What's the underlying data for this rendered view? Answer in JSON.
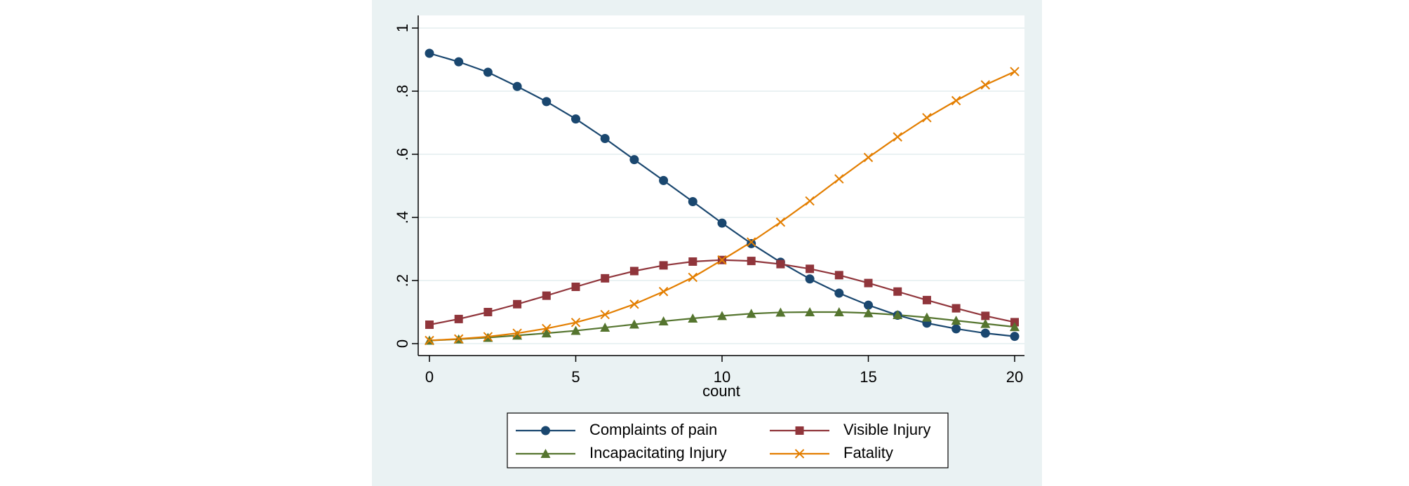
{
  "chart_data": {
    "type": "line",
    "title": "",
    "xlabel": "count",
    "ylabel": "",
    "xlim": [
      0,
      20
    ],
    "ylim": [
      0,
      1
    ],
    "x_ticks": [
      0,
      5,
      10,
      15,
      20
    ],
    "x_tick_labels": [
      "0",
      "5",
      "10",
      "15",
      "20"
    ],
    "y_ticks": [
      0,
      0.2,
      0.4,
      0.6,
      0.8,
      1
    ],
    "y_tick_labels": [
      "0",
      ".2",
      ".4",
      ".6",
      ".8",
      "1"
    ],
    "grid": true,
    "legend_position": "bottom",
    "x": [
      0,
      1,
      2,
      3,
      4,
      5,
      6,
      7,
      8,
      9,
      10,
      11,
      12,
      13,
      14,
      15,
      16,
      17,
      18,
      19,
      20
    ],
    "series": [
      {
        "name": "Complaints of pain",
        "color": "#1a476f",
        "marker": "circle",
        "values": [
          0.92,
          0.893,
          0.86,
          0.815,
          0.767,
          0.712,
          0.65,
          0.583,
          0.517,
          0.45,
          0.382,
          0.317,
          0.258,
          0.205,
          0.16,
          0.122,
          0.09,
          0.065,
          0.047,
          0.033,
          0.023
        ]
      },
      {
        "name": "Visible Injury",
        "color": "#90353b",
        "marker": "square",
        "values": [
          0.06,
          0.078,
          0.1,
          0.125,
          0.152,
          0.18,
          0.207,
          0.23,
          0.248,
          0.26,
          0.265,
          0.262,
          0.252,
          0.237,
          0.217,
          0.192,
          0.165,
          0.138,
          0.112,
          0.088,
          0.068
        ]
      },
      {
        "name": "Incapacitating Injury",
        "color": "#55752f",
        "marker": "triangle",
        "values": [
          0.01,
          0.014,
          0.019,
          0.026,
          0.033,
          0.041,
          0.051,
          0.061,
          0.071,
          0.08,
          0.088,
          0.095,
          0.099,
          0.1,
          0.1,
          0.097,
          0.091,
          0.083,
          0.073,
          0.063,
          0.053
        ]
      },
      {
        "name": "Fatality",
        "color": "#e37e00",
        "marker": "x",
        "values": [
          0.01,
          0.015,
          0.022,
          0.033,
          0.048,
          0.067,
          0.092,
          0.125,
          0.165,
          0.21,
          0.265,
          0.322,
          0.385,
          0.452,
          0.522,
          0.59,
          0.655,
          0.716,
          0.77,
          0.82,
          0.862
        ]
      }
    ]
  }
}
